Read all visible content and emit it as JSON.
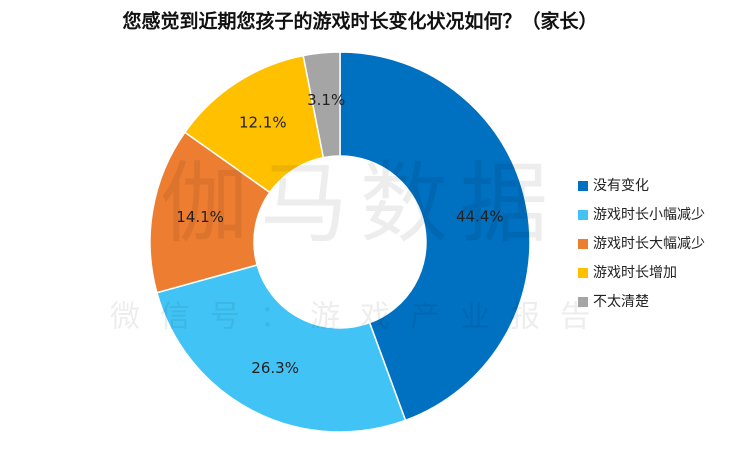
{
  "chart_data": {
    "type": "donut",
    "title": "您感觉到近期您孩子的游戏时长变化状况如何？（家长）",
    "categories": [
      "没有变化",
      "游戏时长小幅减少",
      "游戏时长大幅减少",
      "游戏时长增加",
      "不太清楚"
    ],
    "values": [
      44.4,
      26.3,
      14.1,
      12.1,
      3.1
    ],
    "value_labels": [
      "44.4%",
      "26.3%",
      "14.1%",
      "12.1%",
      "3.1%"
    ],
    "colors": [
      "#0070c0",
      "#41c4f5",
      "#ed7d31",
      "#ffc000",
      "#a5a5a5"
    ],
    "legend": "right",
    "watermark": [
      "伽马数据",
      "微信号：游戏产业报告"
    ]
  }
}
